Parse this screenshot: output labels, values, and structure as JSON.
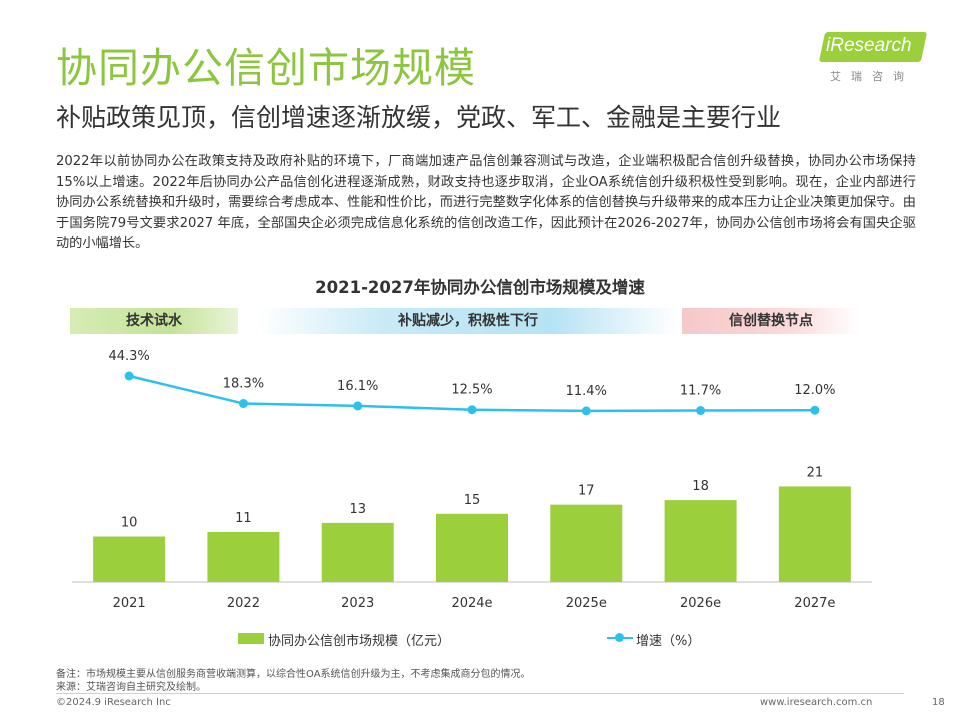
{
  "header": {
    "title": "协同办公信创市场规模",
    "subtitle": "补贴政策见顶，信创增速逐渐放缓，党政、军工、金融是主要行业"
  },
  "logo": {
    "text": "iResearch",
    "cn": "艾瑞咨询"
  },
  "body_text": "2022年以前协同办公在政策支持及政府补贴的环境下，厂商端加速产品信创兼容测试与改造，企业端积极配合信创升级替换，协同办公市场保持15%以上增速。2022年后协同办公产品信创化进程逐渐成熟，财政支持也逐步取消，企业OA系统信创升级积极性受到影响。现在，企业内部进行协同办公系统替换和升级时，需要综合考虑成本、性能和性价比，而进行完整数字化体系的信创替换与升级带来的成本压力让企业决策更加保守。由于国务院79号文要求2027 年底，全部国央企必须完成信息化系统的信创改造工作，因此预计在2026-2027年，协同办公信创市场将会有国央企驱动的小幅增长。",
  "chart_data": {
    "type": "bar",
    "title": "2021-2027年协同办公信创市场规模及增速",
    "categories": [
      "2021",
      "2022",
      "2023",
      "2024e",
      "2025e",
      "2026e",
      "2027e"
    ],
    "series": [
      {
        "name": "协同办公信创市场规模（亿元）",
        "type": "bar",
        "values": [
          10,
          11,
          13,
          15,
          17,
          18,
          21
        ],
        "labels": [
          "10",
          "11",
          "13",
          "15",
          "17",
          "18",
          "21"
        ],
        "color": "#9bd03c"
      },
      {
        "name": "增速（%）",
        "type": "line",
        "values": [
          44.3,
          18.3,
          16.1,
          12.5,
          11.4,
          11.7,
          12.0
        ],
        "labels": [
          "44.3%",
          "18.3%",
          "16.1%",
          "12.5%",
          "11.4%",
          "11.7%",
          "12.0%"
        ],
        "color": "#2ec0ec"
      }
    ],
    "phases": [
      "技术试水",
      "补贴减少，积极性下行",
      "信创替换节点"
    ]
  },
  "notes": {
    "note": "备注：市场规模主要从信创服务商营收端测算，以综合性OA系统信创升级为主，不考虑集成商分包的情况。",
    "source": "来源：艾瑞咨询自主研究及绘制。"
  },
  "footer": {
    "copyright": "©2024.9 iResearch Inc",
    "website": "www.iresearch.com.cn",
    "page": "18"
  }
}
